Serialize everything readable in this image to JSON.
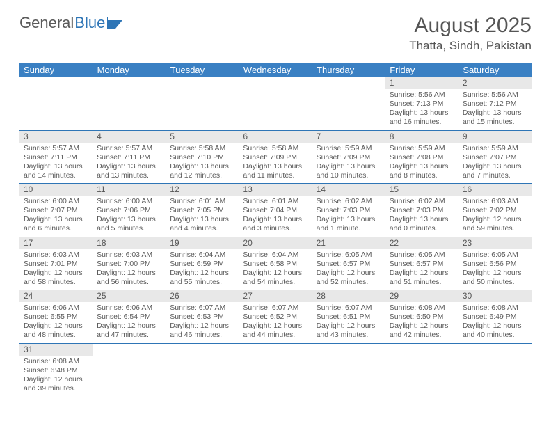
{
  "logo": {
    "text1": "General",
    "text2": "Blue"
  },
  "header": {
    "month": "August 2025",
    "location": "Thatta, Sindh, Pakistan"
  },
  "colors": {
    "header_bg": "#3a80c3",
    "header_text": "#ffffff",
    "row_divider": "#2e75b6",
    "daynum_bg": "#e8e8e8",
    "text": "#5a5a5a",
    "logo_blue": "#2e75b6"
  },
  "weekdays": [
    "Sunday",
    "Monday",
    "Tuesday",
    "Wednesday",
    "Thursday",
    "Friday",
    "Saturday"
  ],
  "weeks": [
    [
      null,
      null,
      null,
      null,
      null,
      {
        "n": "1",
        "sr": "Sunrise: 5:56 AM",
        "ss": "Sunset: 7:13 PM",
        "dl": "Daylight: 13 hours and 16 minutes."
      },
      {
        "n": "2",
        "sr": "Sunrise: 5:56 AM",
        "ss": "Sunset: 7:12 PM",
        "dl": "Daylight: 13 hours and 15 minutes."
      }
    ],
    [
      {
        "n": "3",
        "sr": "Sunrise: 5:57 AM",
        "ss": "Sunset: 7:11 PM",
        "dl": "Daylight: 13 hours and 14 minutes."
      },
      {
        "n": "4",
        "sr": "Sunrise: 5:57 AM",
        "ss": "Sunset: 7:11 PM",
        "dl": "Daylight: 13 hours and 13 minutes."
      },
      {
        "n": "5",
        "sr": "Sunrise: 5:58 AM",
        "ss": "Sunset: 7:10 PM",
        "dl": "Daylight: 13 hours and 12 minutes."
      },
      {
        "n": "6",
        "sr": "Sunrise: 5:58 AM",
        "ss": "Sunset: 7:09 PM",
        "dl": "Daylight: 13 hours and 11 minutes."
      },
      {
        "n": "7",
        "sr": "Sunrise: 5:59 AM",
        "ss": "Sunset: 7:09 PM",
        "dl": "Daylight: 13 hours and 10 minutes."
      },
      {
        "n": "8",
        "sr": "Sunrise: 5:59 AM",
        "ss": "Sunset: 7:08 PM",
        "dl": "Daylight: 13 hours and 8 minutes."
      },
      {
        "n": "9",
        "sr": "Sunrise: 5:59 AM",
        "ss": "Sunset: 7:07 PM",
        "dl": "Daylight: 13 hours and 7 minutes."
      }
    ],
    [
      {
        "n": "10",
        "sr": "Sunrise: 6:00 AM",
        "ss": "Sunset: 7:07 PM",
        "dl": "Daylight: 13 hours and 6 minutes."
      },
      {
        "n": "11",
        "sr": "Sunrise: 6:00 AM",
        "ss": "Sunset: 7:06 PM",
        "dl": "Daylight: 13 hours and 5 minutes."
      },
      {
        "n": "12",
        "sr": "Sunrise: 6:01 AM",
        "ss": "Sunset: 7:05 PM",
        "dl": "Daylight: 13 hours and 4 minutes."
      },
      {
        "n": "13",
        "sr": "Sunrise: 6:01 AM",
        "ss": "Sunset: 7:04 PM",
        "dl": "Daylight: 13 hours and 3 minutes."
      },
      {
        "n": "14",
        "sr": "Sunrise: 6:02 AM",
        "ss": "Sunset: 7:03 PM",
        "dl": "Daylight: 13 hours and 1 minute."
      },
      {
        "n": "15",
        "sr": "Sunrise: 6:02 AM",
        "ss": "Sunset: 7:03 PM",
        "dl": "Daylight: 13 hours and 0 minutes."
      },
      {
        "n": "16",
        "sr": "Sunrise: 6:03 AM",
        "ss": "Sunset: 7:02 PM",
        "dl": "Daylight: 12 hours and 59 minutes."
      }
    ],
    [
      {
        "n": "17",
        "sr": "Sunrise: 6:03 AM",
        "ss": "Sunset: 7:01 PM",
        "dl": "Daylight: 12 hours and 58 minutes."
      },
      {
        "n": "18",
        "sr": "Sunrise: 6:03 AM",
        "ss": "Sunset: 7:00 PM",
        "dl": "Daylight: 12 hours and 56 minutes."
      },
      {
        "n": "19",
        "sr": "Sunrise: 6:04 AM",
        "ss": "Sunset: 6:59 PM",
        "dl": "Daylight: 12 hours and 55 minutes."
      },
      {
        "n": "20",
        "sr": "Sunrise: 6:04 AM",
        "ss": "Sunset: 6:58 PM",
        "dl": "Daylight: 12 hours and 54 minutes."
      },
      {
        "n": "21",
        "sr": "Sunrise: 6:05 AM",
        "ss": "Sunset: 6:57 PM",
        "dl": "Daylight: 12 hours and 52 minutes."
      },
      {
        "n": "22",
        "sr": "Sunrise: 6:05 AM",
        "ss": "Sunset: 6:57 PM",
        "dl": "Daylight: 12 hours and 51 minutes."
      },
      {
        "n": "23",
        "sr": "Sunrise: 6:05 AM",
        "ss": "Sunset: 6:56 PM",
        "dl": "Daylight: 12 hours and 50 minutes."
      }
    ],
    [
      {
        "n": "24",
        "sr": "Sunrise: 6:06 AM",
        "ss": "Sunset: 6:55 PM",
        "dl": "Daylight: 12 hours and 48 minutes."
      },
      {
        "n": "25",
        "sr": "Sunrise: 6:06 AM",
        "ss": "Sunset: 6:54 PM",
        "dl": "Daylight: 12 hours and 47 minutes."
      },
      {
        "n": "26",
        "sr": "Sunrise: 6:07 AM",
        "ss": "Sunset: 6:53 PM",
        "dl": "Daylight: 12 hours and 46 minutes."
      },
      {
        "n": "27",
        "sr": "Sunrise: 6:07 AM",
        "ss": "Sunset: 6:52 PM",
        "dl": "Daylight: 12 hours and 44 minutes."
      },
      {
        "n": "28",
        "sr": "Sunrise: 6:07 AM",
        "ss": "Sunset: 6:51 PM",
        "dl": "Daylight: 12 hours and 43 minutes."
      },
      {
        "n": "29",
        "sr": "Sunrise: 6:08 AM",
        "ss": "Sunset: 6:50 PM",
        "dl": "Daylight: 12 hours and 42 minutes."
      },
      {
        "n": "30",
        "sr": "Sunrise: 6:08 AM",
        "ss": "Sunset: 6:49 PM",
        "dl": "Daylight: 12 hours and 40 minutes."
      }
    ],
    [
      {
        "n": "31",
        "sr": "Sunrise: 6:08 AM",
        "ss": "Sunset: 6:48 PM",
        "dl": "Daylight: 12 hours and 39 minutes."
      },
      null,
      null,
      null,
      null,
      null,
      null
    ]
  ]
}
